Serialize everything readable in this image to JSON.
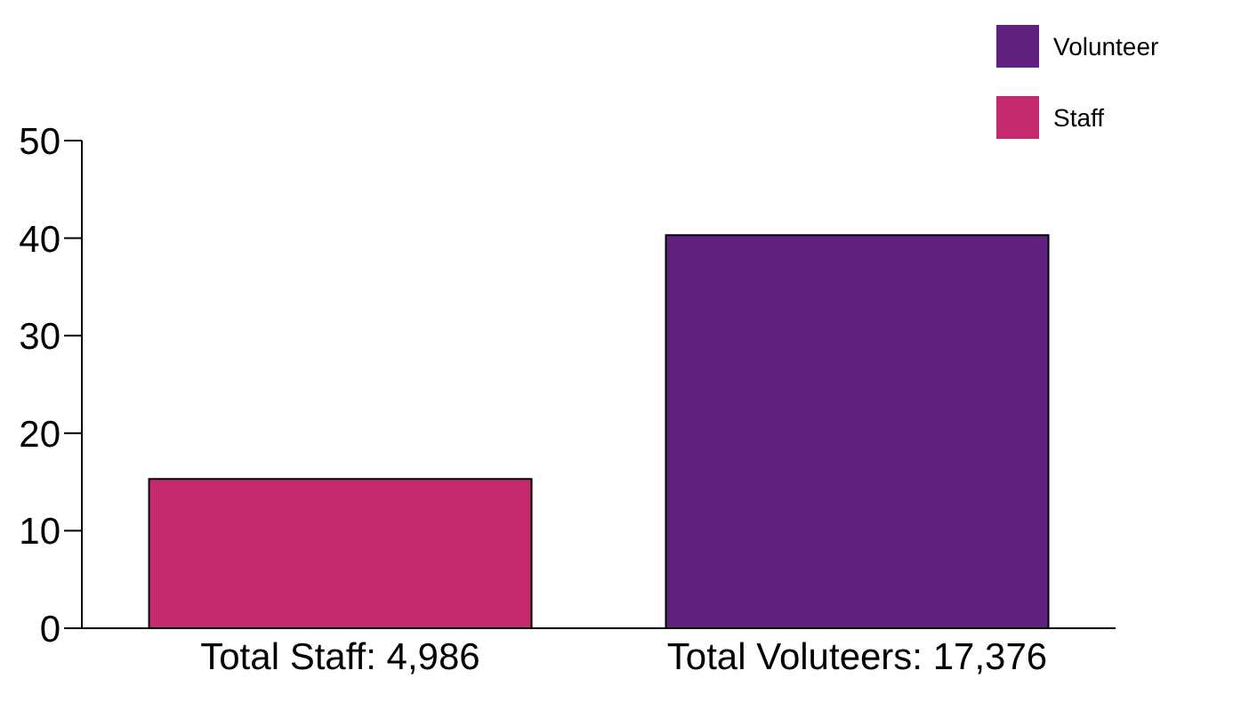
{
  "chart_data": {
    "type": "bar",
    "categories": [
      "Total Staff: 4,986",
      "Total Voluteers: 17,376"
    ],
    "stacked": true,
    "series": [
      {
        "name": "Volunteer",
        "color": "#61217f",
        "values": [
          null,
          40.3
        ]
      },
      {
        "name": "Staff",
        "color": "#c42b6f",
        "values": [
          15.3,
          null
        ]
      }
    ],
    "ylim": [
      0,
      50
    ],
    "yticks": [
      0,
      10,
      20,
      30,
      40,
      50
    ],
    "legend": "top right"
  }
}
